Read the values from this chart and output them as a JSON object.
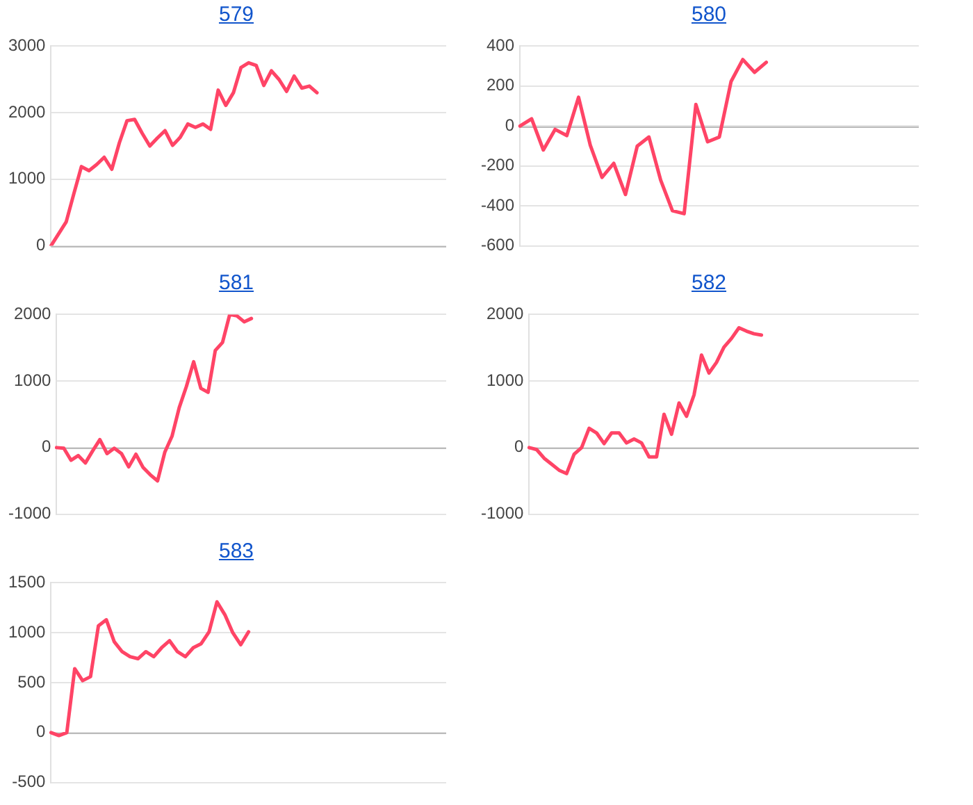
{
  "chart_data": [
    {
      "type": "line",
      "title": "579",
      "categories": [
        null,
        null,
        null,
        null,
        null,
        null,
        null,
        null,
        null,
        null,
        null,
        null,
        null,
        null,
        null,
        null,
        null,
        null,
        null,
        null,
        null,
        null,
        null,
        null,
        null,
        null,
        null,
        null,
        null,
        null,
        null,
        null,
        null,
        null,
        null,
        null,
        null,
        null,
        null,
        null,
        null,
        null,
        null,
        null,
        null,
        null,
        null,
        null,
        null,
        null,
        null,
        null,
        null
      ],
      "series": [
        {
          "color": "#ff4466",
          "values": [
            0,
            180,
            360,
            780,
            1190,
            1130,
            1220,
            1330,
            1150,
            1550,
            1880,
            1900,
            1690,
            1500,
            1620,
            1730,
            1510,
            1630,
            1830,
            1780,
            1830,
            1750,
            2340,
            2110,
            2300,
            2680,
            2750,
            2710,
            2410,
            2630,
            2500,
            2320,
            2550,
            2370,
            2400,
            2300,
            null,
            null,
            null,
            null,
            null,
            null,
            null,
            null,
            null,
            null,
            null,
            null,
            null,
            null,
            null,
            null,
            null
          ]
        }
      ],
      "ylim": [
        0,
        3000
      ],
      "yticks": [
        0,
        1000,
        2000,
        3000
      ],
      "grid": "y",
      "ref_lines": [
        {
          "axis": "y",
          "value": 0,
          "color": "#bbbbbb"
        }
      ],
      "legend": false,
      "marker": "none",
      "tick_labels": "y"
    },
    {
      "type": "line",
      "title": "580",
      "categories": [
        null,
        null,
        null,
        null,
        null,
        null,
        null,
        null,
        null,
        null,
        null,
        null,
        null,
        null,
        null,
        null,
        null,
        null,
        null,
        null,
        null,
        null,
        null,
        null,
        null,
        null,
        null,
        null,
        null,
        null,
        null,
        null,
        null,
        null,
        null
      ],
      "series": [
        {
          "color": "#ff4466",
          "values": [
            0,
            36,
            -120,
            -17,
            -48,
            144,
            -96,
            -257,
            -187,
            -343,
            -101,
            -55,
            -271,
            -424,
            -439,
            108,
            -79,
            -55,
            223,
            333,
            269,
            319,
            null,
            null,
            null,
            null,
            null,
            null,
            null,
            null,
            null,
            null,
            null,
            null,
            null
          ]
        }
      ],
      "ylim": [
        -600,
        400
      ],
      "yticks": [
        -600,
        -400,
        -200,
        0,
        200,
        400
      ],
      "grid": "y",
      "ref_lines": [
        {
          "axis": "y",
          "value": 0,
          "color": "#bbbbbb"
        }
      ],
      "legend": false,
      "marker": "none",
      "tick_labels": "y"
    },
    {
      "type": "line",
      "title": "581",
      "categories": [
        null,
        null,
        null,
        null,
        null,
        null,
        null,
        null,
        null,
        null,
        null,
        null,
        null,
        null,
        null,
        null,
        null,
        null,
        null,
        null,
        null,
        null,
        null,
        null,
        null,
        null,
        null,
        null,
        null,
        null,
        null,
        null,
        null,
        null,
        null,
        null,
        null,
        null,
        null,
        null,
        null,
        null,
        null,
        null,
        null,
        null,
        null,
        null,
        null,
        null,
        null,
        null,
        null,
        null,
        null
      ],
      "ref_lines": [
        {
          "axis": "y",
          "value": 0,
          "color": "#bbbbbb"
        }
      ],
      "series": [
        {
          "color": "#ff4466",
          "values": [
            0,
            -10,
            -190,
            -120,
            -230,
            -50,
            120,
            -90,
            -10,
            -90,
            -290,
            -100,
            -300,
            -410,
            -500,
            -70,
            170,
            600,
            920,
            1290,
            890,
            830,
            1460,
            1580,
            2000,
            1980,
            1890,
            1940,
            null,
            null,
            null,
            null,
            null,
            null,
            null,
            null,
            null,
            null,
            null,
            null,
            null,
            null,
            null,
            null,
            null,
            null,
            null,
            null,
            null,
            null,
            null,
            null,
            null,
            null,
            null
          ]
        }
      ],
      "ylim": [
        -1000,
        2000
      ],
      "yticks": [
        -1000,
        0,
        1000,
        2000
      ],
      "grid": "y",
      "legend": false,
      "marker": "none",
      "tick_labels": "y"
    },
    {
      "type": "line",
      "title": "582",
      "categories": [
        null,
        null,
        null,
        null,
        null,
        null,
        null,
        null,
        null,
        null,
        null,
        null,
        null,
        null,
        null,
        null,
        null,
        null,
        null,
        null,
        null,
        null,
        null,
        null,
        null,
        null,
        null,
        null,
        null,
        null,
        null,
        null,
        null,
        null,
        null,
        null,
        null,
        null,
        null,
        null,
        null,
        null,
        null,
        null,
        null,
        null,
        null,
        null,
        null,
        null,
        null,
        null,
        null
      ],
      "ref_lines": [
        {
          "axis": "y",
          "value": 0,
          "color": "#bbbbbb"
        }
      ],
      "series": [
        {
          "color": "#ff4466",
          "values": [
            0,
            -30,
            -160,
            -250,
            -340,
            -390,
            -100,
            0,
            290,
            220,
            60,
            220,
            220,
            70,
            130,
            70,
            -140,
            -140,
            500,
            200,
            670,
            470,
            790,
            1390,
            1120,
            1280,
            1510,
            1640,
            1800,
            1750,
            1710,
            1690,
            null,
            null,
            null,
            null,
            null,
            null,
            null,
            null,
            null,
            null,
            null,
            null,
            null,
            null,
            null,
            null,
            null,
            null,
            null,
            null,
            null
          ]
        }
      ],
      "ylim": [
        -1000,
        2000
      ],
      "yticks": [
        -1000,
        0,
        1000,
        2000
      ],
      "grid": "y",
      "legend": false,
      "marker": "none",
      "tick_labels": "y"
    },
    {
      "type": "line",
      "title": "583",
      "categories": [
        null,
        null,
        null,
        null,
        null,
        null,
        null,
        null,
        null,
        null,
        null,
        null,
        null,
        null,
        null,
        null,
        null,
        null,
        null,
        null,
        null,
        null,
        null,
        null,
        null,
        null,
        null,
        null,
        null,
        null,
        null,
        null,
        null,
        null,
        null,
        null,
        null,
        null,
        null,
        null,
        null,
        null,
        null,
        null,
        null,
        null,
        null,
        null,
        null,
        null,
        null
      ],
      "series": [
        {
          "color": "#ff4466",
          "values": [
            0,
            -30,
            0,
            640,
            520,
            560,
            1070,
            1130,
            910,
            810,
            760,
            740,
            810,
            760,
            850,
            920,
            810,
            760,
            850,
            890,
            1010,
            1310,
            1180,
            1000,
            880,
            1010,
            null,
            null,
            null,
            null,
            null,
            null,
            null,
            null,
            null,
            null,
            null,
            null,
            null,
            null,
            null,
            null,
            null,
            null,
            null,
            null,
            null,
            null,
            null,
            null,
            null
          ]
        }
      ],
      "ylim": [
        -500,
        1500
      ],
      "yticks": [
        -500,
        0,
        500,
        1000,
        1500
      ],
      "grid": "y",
      "ref_lines": [
        {
          "axis": "y",
          "value": 0,
          "color": "#bbbbbb"
        }
      ],
      "legend": false,
      "marker": "none",
      "tick_labels": "y"
    }
  ]
}
